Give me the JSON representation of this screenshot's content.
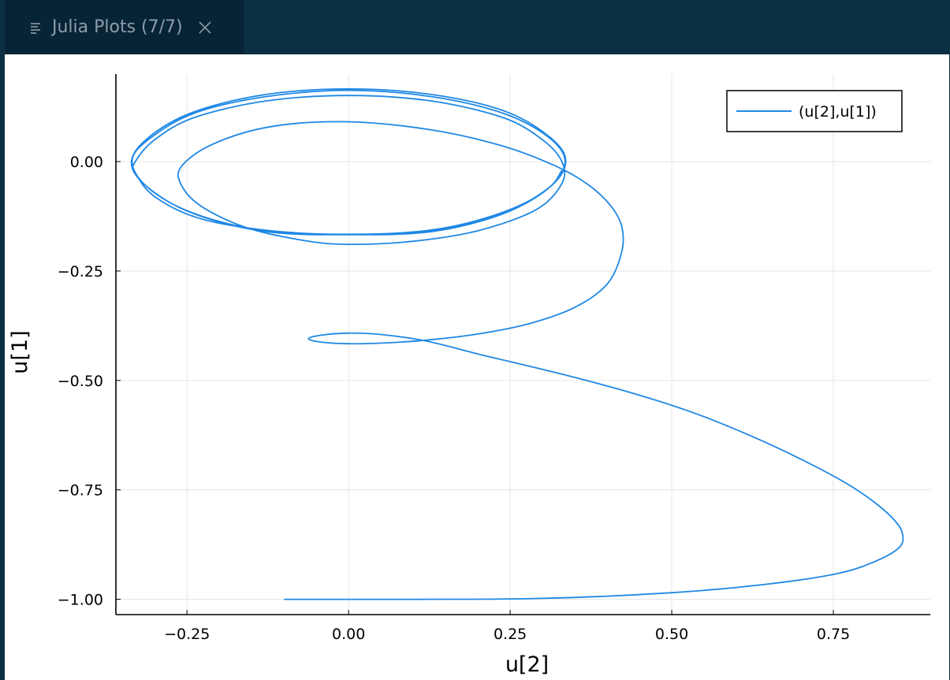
{
  "tab": {
    "title": "Julia Plots (7/7)",
    "icon": "list-lines-icon",
    "close_icon": "close-icon"
  },
  "colors": {
    "window_bg": "#0b2f43",
    "tab_bg": "#072436",
    "tab_text": "#8d9eaa",
    "series": "#1f88e5",
    "grid": "#e6e6e6"
  },
  "chart_data": {
    "type": "line",
    "title": "",
    "xlabel": "u[2]",
    "ylabel": "u[1]",
    "xlim": [
      -0.36,
      0.9
    ],
    "ylim": [
      -1.035,
      0.2
    ],
    "xticks": [
      -0.25,
      0.0,
      0.25,
      0.5,
      0.75
    ],
    "xtick_labels": [
      "−0.25",
      "0.00",
      "0.25",
      "0.50",
      "0.75"
    ],
    "yticks": [
      0.0,
      -0.25,
      -0.5,
      -0.75,
      -1.0
    ],
    "ytick_labels": [
      "0.00",
      "−0.25",
      "−0.50",
      "−0.75",
      "−1.00"
    ],
    "grid": true,
    "legend_position": "top-right",
    "series": [
      {
        "name": "(u[2],u[1])",
        "color": "#1f88e5",
        "points": [
          [
            -0.1,
            -1.0
          ],
          [
            0.1,
            -1.0
          ],
          [
            0.3,
            -0.998
          ],
          [
            0.5,
            -0.985
          ],
          [
            0.65,
            -0.965
          ],
          [
            0.76,
            -0.94
          ],
          [
            0.82,
            -0.91
          ],
          [
            0.853,
            -0.88
          ],
          [
            0.857,
            -0.85
          ],
          [
            0.845,
            -0.82
          ],
          [
            0.815,
            -0.78
          ],
          [
            0.77,
            -0.735
          ],
          [
            0.7,
            -0.68
          ],
          [
            0.62,
            -0.625
          ],
          [
            0.53,
            -0.572
          ],
          [
            0.43,
            -0.525
          ],
          [
            0.32,
            -0.482
          ],
          [
            0.21,
            -0.443
          ],
          [
            0.12,
            -0.41
          ],
          [
            0.05,
            -0.395
          ],
          [
            0.0,
            -0.392
          ],
          [
            -0.04,
            -0.396
          ],
          [
            -0.062,
            -0.404
          ],
          [
            -0.045,
            -0.412
          ],
          [
            0.0,
            -0.416
          ],
          [
            0.06,
            -0.414
          ],
          [
            0.12,
            -0.408
          ],
          [
            0.2,
            -0.394
          ],
          [
            0.28,
            -0.37
          ],
          [
            0.35,
            -0.333
          ],
          [
            0.4,
            -0.28
          ],
          [
            0.422,
            -0.21
          ],
          [
            0.423,
            -0.15
          ],
          [
            0.405,
            -0.1
          ],
          [
            0.37,
            -0.052
          ],
          [
            0.32,
            -0.01
          ],
          [
            0.24,
            0.035
          ],
          [
            0.13,
            0.072
          ],
          [
            0.0,
            0.091
          ],
          [
            -0.12,
            0.08
          ],
          [
            -0.21,
            0.04
          ],
          [
            -0.258,
            -0.01
          ],
          [
            -0.26,
            -0.05
          ],
          [
            -0.23,
            -0.1
          ],
          [
            -0.16,
            -0.15
          ],
          [
            -0.07,
            -0.18
          ],
          [
            0.0,
            -0.189
          ],
          [
            0.1,
            -0.182
          ],
          [
            0.2,
            -0.158
          ],
          [
            0.29,
            -0.11
          ],
          [
            0.33,
            -0.05
          ],
          [
            0.33,
            0.0
          ],
          [
            0.3,
            0.05
          ],
          [
            0.24,
            0.1
          ],
          [
            0.13,
            0.138
          ],
          [
            0.0,
            0.151
          ],
          [
            -0.13,
            0.138
          ],
          [
            -0.24,
            0.1
          ],
          [
            -0.3,
            0.05
          ],
          [
            -0.33,
            0.0
          ],
          [
            -0.33,
            -0.025
          ],
          [
            -0.3,
            -0.08
          ],
          [
            -0.23,
            -0.13
          ],
          [
            -0.12,
            -0.158
          ],
          [
            0.0,
            -0.166
          ],
          [
            0.13,
            -0.156
          ],
          [
            0.24,
            -0.115
          ],
          [
            0.31,
            -0.06
          ],
          [
            0.335,
            0.0
          ],
          [
            0.31,
            0.055
          ],
          [
            0.24,
            0.11
          ],
          [
            0.13,
            0.148
          ],
          [
            0.0,
            0.163
          ],
          [
            -0.13,
            0.148
          ],
          [
            -0.24,
            0.11
          ],
          [
            -0.31,
            0.05
          ],
          [
            -0.335,
            0.0
          ],
          [
            -0.31,
            -0.06
          ],
          [
            -0.24,
            -0.118
          ],
          [
            -0.13,
            -0.158
          ],
          [
            0.0,
            -0.167
          ],
          [
            0.13,
            -0.158
          ],
          [
            0.24,
            -0.118
          ],
          [
            0.31,
            -0.06
          ],
          [
            0.336,
            0.0
          ],
          [
            0.312,
            0.055
          ],
          [
            0.242,
            0.115
          ],
          [
            0.13,
            0.153
          ],
          [
            0.0,
            0.166
          ],
          [
            -0.13,
            0.153
          ],
          [
            -0.242,
            0.112
          ],
          [
            -0.312,
            0.052
          ],
          [
            -0.336,
            -0.005
          ],
          [
            -0.308,
            -0.062
          ],
          [
            -0.238,
            -0.12
          ],
          [
            -0.128,
            -0.16
          ],
          [
            0.0,
            -0.167
          ],
          [
            0.128,
            -0.16
          ],
          [
            0.238,
            -0.12
          ],
          [
            0.308,
            -0.062
          ],
          [
            0.33,
            -0.02
          ]
        ]
      }
    ]
  }
}
